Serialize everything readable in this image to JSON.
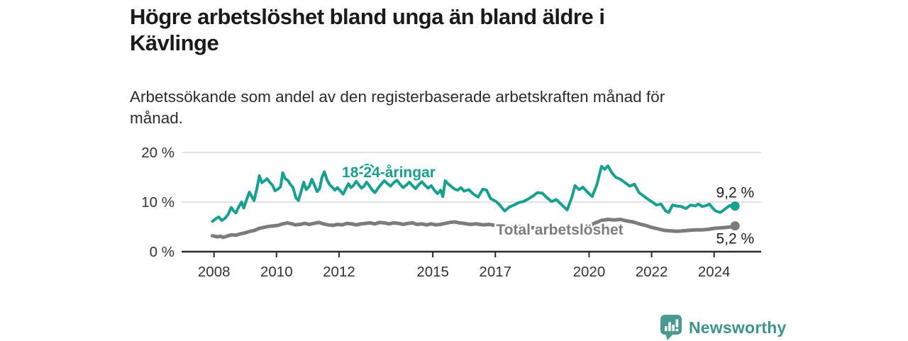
{
  "header": {
    "title_lines": [
      "Högre arbetslöshet bland unga än bland äldre i",
      "Kävlinge"
    ],
    "subtitle_lines": [
      "Arbetssökande som andel av den registerbaserade arbetskraften månad för",
      "månad."
    ]
  },
  "footer": {
    "brand": "Newsworthy",
    "brand_color": "#3e948b",
    "logo_icon": "newsworthy-bar-chart-bubble-icon",
    "logo_color": "#4a9a91"
  },
  "chart_data": {
    "type": "line",
    "title": "Högre arbetslöshet bland unga än bland äldre i Kävlinge",
    "subtitle": "Arbetssökande som andel av den registerbaserade arbetskraften månad för månad.",
    "unit": "%",
    "grid": true,
    "legend": "inline-labels",
    "x_axis": {
      "ticks": [
        2008,
        2010,
        2012,
        2015,
        2017,
        2020,
        2022,
        2024
      ],
      "range": [
        2007.9,
        2025.4
      ]
    },
    "y_axis": {
      "ticks": [
        0,
        10,
        20
      ],
      "labels": [
        "0 %",
        "10 %",
        "20 %"
      ],
      "range": [
        0,
        20
      ]
    },
    "colors": {
      "grid": "#d8d8d8",
      "axis": "#2a2a2a",
      "tick_text": "#333333"
    },
    "series": [
      {
        "name": "18-24-åringar",
        "color": "#17a08f",
        "end_value": 9.2,
        "end_label": "9,2 %",
        "points": [
          [
            2007.95,
            6.1
          ],
          [
            2008.05,
            6.6
          ],
          [
            2008.15,
            7.0
          ],
          [
            2008.25,
            6.3
          ],
          [
            2008.35,
            6.7
          ],
          [
            2008.45,
            7.5
          ],
          [
            2008.55,
            8.9
          ],
          [
            2008.63,
            8.2
          ],
          [
            2008.7,
            7.8
          ],
          [
            2008.8,
            9.1
          ],
          [
            2008.88,
            10.0
          ],
          [
            2008.95,
            8.8
          ],
          [
            2009.05,
            10.6
          ],
          [
            2009.13,
            12.0
          ],
          [
            2009.2,
            11.2
          ],
          [
            2009.28,
            10.3
          ],
          [
            2009.37,
            12.7
          ],
          [
            2009.45,
            15.3
          ],
          [
            2009.53,
            13.9
          ],
          [
            2009.62,
            14.3
          ],
          [
            2009.7,
            14.7
          ],
          [
            2009.78,
            14.0
          ],
          [
            2009.87,
            13.4
          ],
          [
            2009.95,
            12.3
          ],
          [
            2010.05,
            12.6
          ],
          [
            2010.13,
            13.1
          ],
          [
            2010.2,
            15.9
          ],
          [
            2010.28,
            14.7
          ],
          [
            2010.37,
            14.3
          ],
          [
            2010.45,
            13.5
          ],
          [
            2010.53,
            12.9
          ],
          [
            2010.62,
            10.9
          ],
          [
            2010.7,
            10.3
          ],
          [
            2010.78,
            12.0
          ],
          [
            2010.87,
            14.0
          ],
          [
            2010.95,
            12.5
          ],
          [
            2011.05,
            13.2
          ],
          [
            2011.13,
            14.6
          ],
          [
            2011.22,
            13.3
          ],
          [
            2011.3,
            12.1
          ],
          [
            2011.38,
            12.7
          ],
          [
            2011.45,
            14.9
          ],
          [
            2011.53,
            16.1
          ],
          [
            2011.62,
            14.4
          ],
          [
            2011.7,
            13.5
          ],
          [
            2011.78,
            13.0
          ],
          [
            2011.87,
            12.4
          ],
          [
            2011.95,
            12.9
          ],
          [
            2012.05,
            12.2
          ],
          [
            2012.13,
            11.6
          ],
          [
            2012.22,
            12.7
          ],
          [
            2012.3,
            13.7
          ],
          [
            2012.38,
            12.9
          ],
          [
            2012.47,
            13.4
          ],
          [
            2012.55,
            14.2
          ],
          [
            2012.63,
            13.5
          ],
          [
            2012.72,
            12.8
          ],
          [
            2012.8,
            13.2
          ],
          [
            2012.88,
            14.0
          ],
          [
            2012.97,
            13.3
          ],
          [
            2013.05,
            12.5
          ],
          [
            2013.15,
            11.9
          ],
          [
            2013.25,
            12.8
          ],
          [
            2013.35,
            13.6
          ],
          [
            2013.45,
            14.3
          ],
          [
            2013.55,
            13.7
          ],
          [
            2013.65,
            13.2
          ],
          [
            2013.75,
            13.9
          ],
          [
            2013.85,
            14.4
          ],
          [
            2013.95,
            13.6
          ],
          [
            2014.05,
            12.9
          ],
          [
            2014.15,
            13.4
          ],
          [
            2014.25,
            14.0
          ],
          [
            2014.35,
            13.3
          ],
          [
            2014.45,
            12.7
          ],
          [
            2014.55,
            13.5
          ],
          [
            2014.65,
            14.1
          ],
          [
            2014.75,
            13.4
          ],
          [
            2014.85,
            12.8
          ],
          [
            2014.95,
            13.3
          ],
          [
            2015.05,
            12.4
          ],
          [
            2015.15,
            11.7
          ],
          [
            2015.25,
            12.4
          ],
          [
            2015.32,
            11.1
          ],
          [
            2015.4,
            14.3
          ],
          [
            2015.5,
            13.6
          ],
          [
            2015.6,
            13.1
          ],
          [
            2015.7,
            12.6
          ],
          [
            2015.8,
            12.4
          ],
          [
            2015.9,
            12.9
          ],
          [
            2016.0,
            12.2
          ],
          [
            2016.15,
            12.5
          ],
          [
            2016.3,
            11.6
          ],
          [
            2016.45,
            11.0
          ],
          [
            2016.6,
            12.6
          ],
          [
            2016.72,
            12.4
          ],
          [
            2016.85,
            10.7
          ],
          [
            2017.0,
            10.2
          ],
          [
            2017.1,
            9.7
          ],
          [
            2017.3,
            8.2
          ],
          [
            2017.45,
            9.0
          ],
          [
            2017.6,
            9.4
          ],
          [
            2017.75,
            9.9
          ],
          [
            2017.9,
            10.1
          ],
          [
            2018.05,
            10.6
          ],
          [
            2018.2,
            11.2
          ],
          [
            2018.35,
            11.9
          ],
          [
            2018.5,
            11.8
          ],
          [
            2018.65,
            10.9
          ],
          [
            2018.8,
            10.1
          ],
          [
            2018.95,
            10.5
          ],
          [
            2019.1,
            9.6
          ],
          [
            2019.3,
            8.4
          ],
          [
            2019.45,
            11.0
          ],
          [
            2019.55,
            13.3
          ],
          [
            2019.68,
            12.5
          ],
          [
            2019.8,
            13.0
          ],
          [
            2019.95,
            12.0
          ],
          [
            2020.1,
            11.1
          ],
          [
            2020.25,
            13.5
          ],
          [
            2020.4,
            17.2
          ],
          [
            2020.5,
            16.6
          ],
          [
            2020.6,
            17.3
          ],
          [
            2020.72,
            16.0
          ],
          [
            2020.85,
            15.0
          ],
          [
            2021.0,
            14.6
          ],
          [
            2021.15,
            13.9
          ],
          [
            2021.3,
            13.2
          ],
          [
            2021.45,
            13.6
          ],
          [
            2021.6,
            11.9
          ],
          [
            2021.75,
            11.2
          ],
          [
            2021.9,
            10.5
          ],
          [
            2022.05,
            9.9
          ],
          [
            2022.15,
            9.4
          ],
          [
            2022.3,
            9.6
          ],
          [
            2022.45,
            8.2
          ],
          [
            2022.55,
            7.9
          ],
          [
            2022.67,
            9.4
          ],
          [
            2022.8,
            9.2
          ],
          [
            2022.95,
            9.1
          ],
          [
            2023.1,
            8.7
          ],
          [
            2023.25,
            9.4
          ],
          [
            2023.4,
            9.2
          ],
          [
            2023.5,
            9.6
          ],
          [
            2023.62,
            9.1
          ],
          [
            2023.75,
            9.3
          ],
          [
            2023.85,
            9.6
          ],
          [
            2023.95,
            8.8
          ],
          [
            2024.05,
            8.2
          ],
          [
            2024.2,
            7.9
          ],
          [
            2024.35,
            8.6
          ],
          [
            2024.5,
            9.3
          ],
          [
            2024.6,
            8.9
          ],
          [
            2024.67,
            9.2
          ]
        ]
      },
      {
        "name": "Total arbetslöshet",
        "color": "#7c7c7c",
        "end_value": 5.2,
        "end_label": "5,2 %",
        "points": [
          [
            2007.95,
            3.2
          ],
          [
            2008.1,
            3.0
          ],
          [
            2008.2,
            3.1
          ],
          [
            2008.3,
            2.9
          ],
          [
            2008.45,
            3.2
          ],
          [
            2008.55,
            3.4
          ],
          [
            2008.7,
            3.3
          ],
          [
            2008.85,
            3.6
          ],
          [
            2009.0,
            3.8
          ],
          [
            2009.15,
            4.1
          ],
          [
            2009.3,
            4.3
          ],
          [
            2009.45,
            4.7
          ],
          [
            2009.6,
            4.9
          ],
          [
            2009.75,
            5.1
          ],
          [
            2009.9,
            5.2
          ],
          [
            2010.05,
            5.3
          ],
          [
            2010.2,
            5.6
          ],
          [
            2010.35,
            5.8
          ],
          [
            2010.5,
            5.6
          ],
          [
            2010.6,
            5.4
          ],
          [
            2010.75,
            5.5
          ],
          [
            2010.9,
            5.7
          ],
          [
            2011.05,
            5.5
          ],
          [
            2011.2,
            5.7
          ],
          [
            2011.35,
            5.9
          ],
          [
            2011.5,
            5.6
          ],
          [
            2011.65,
            5.4
          ],
          [
            2011.8,
            5.3
          ],
          [
            2011.95,
            5.5
          ],
          [
            2012.1,
            5.4
          ],
          [
            2012.25,
            5.7
          ],
          [
            2012.4,
            5.6
          ],
          [
            2012.55,
            5.4
          ],
          [
            2012.7,
            5.6
          ],
          [
            2012.85,
            5.7
          ],
          [
            2013.0,
            5.8
          ],
          [
            2013.15,
            5.6
          ],
          [
            2013.3,
            5.9
          ],
          [
            2013.45,
            5.8
          ],
          [
            2013.6,
            5.6
          ],
          [
            2013.75,
            5.8
          ],
          [
            2013.9,
            5.7
          ],
          [
            2014.05,
            5.5
          ],
          [
            2014.2,
            5.7
          ],
          [
            2014.35,
            5.8
          ],
          [
            2014.5,
            5.5
          ],
          [
            2014.65,
            5.6
          ],
          [
            2014.8,
            5.4
          ],
          [
            2014.95,
            5.6
          ],
          [
            2015.1,
            5.4
          ],
          [
            2015.25,
            5.5
          ],
          [
            2015.4,
            5.7
          ],
          [
            2015.55,
            5.9
          ],
          [
            2015.7,
            6.0
          ],
          [
            2015.85,
            5.8
          ],
          [
            2016.0,
            5.7
          ],
          [
            2016.2,
            5.5
          ],
          [
            2016.4,
            5.6
          ],
          [
            2016.6,
            5.4
          ],
          [
            2016.8,
            5.5
          ],
          [
            2017.0,
            5.3
          ],
          [
            2017.25,
            5.2
          ],
          [
            2017.5,
            5.0
          ],
          [
            2017.75,
            5.1
          ],
          [
            2018.0,
            4.9
          ],
          [
            2018.25,
            4.8
          ],
          [
            2018.5,
            4.9
          ],
          [
            2018.75,
            4.7
          ],
          [
            2019.0,
            4.7
          ],
          [
            2019.25,
            4.6
          ],
          [
            2019.5,
            4.7
          ],
          [
            2019.75,
            4.9
          ],
          [
            2020.0,
            5.2
          ],
          [
            2020.2,
            5.8
          ],
          [
            2020.4,
            6.3
          ],
          [
            2020.6,
            6.5
          ],
          [
            2020.8,
            6.4
          ],
          [
            2021.0,
            6.5
          ],
          [
            2021.2,
            6.2
          ],
          [
            2021.4,
            6.0
          ],
          [
            2021.6,
            5.6
          ],
          [
            2021.8,
            5.3
          ],
          [
            2022.0,
            4.9
          ],
          [
            2022.2,
            4.6
          ],
          [
            2022.4,
            4.3
          ],
          [
            2022.6,
            4.2
          ],
          [
            2022.8,
            4.1
          ],
          [
            2023.0,
            4.2
          ],
          [
            2023.2,
            4.3
          ],
          [
            2023.4,
            4.4
          ],
          [
            2023.6,
            4.4
          ],
          [
            2023.8,
            4.5
          ],
          [
            2024.0,
            4.7
          ],
          [
            2024.2,
            4.8
          ],
          [
            2024.4,
            4.9
          ],
          [
            2024.55,
            5.0
          ],
          [
            2024.67,
            5.2
          ]
        ]
      }
    ]
  }
}
